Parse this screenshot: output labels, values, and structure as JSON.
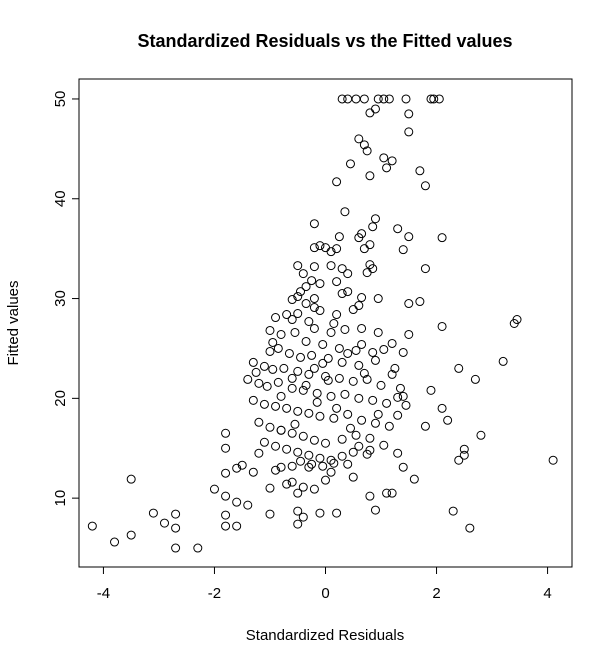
{
  "chart_data": {
    "type": "scatter",
    "title": "Standardized Residuals vs the Fitted values",
    "xlabel": "Standardized Residuals",
    "ylabel": "Fitted values",
    "xlim": [
      -4.44,
      4.44
    ],
    "ylim": [
      3.1,
      52.0
    ],
    "xticks": [
      -4,
      -2,
      0,
      2,
      4
    ],
    "yticks": [
      10,
      20,
      30,
      40,
      50
    ],
    "grid": false,
    "legend": "none",
    "marker": "open-circle",
    "points": [
      [
        -4.2,
        7.2
      ],
      [
        -3.8,
        5.6
      ],
      [
        -3.5,
        6.3
      ],
      [
        -3.5,
        11.9
      ],
      [
        -3.1,
        8.5
      ],
      [
        -2.9,
        7.5
      ],
      [
        -2.7,
        8.4
      ],
      [
        -2.7,
        7.0
      ],
      [
        -2.7,
        5.0
      ],
      [
        -2.3,
        5.0
      ],
      [
        -2.0,
        10.9
      ],
      [
        -1.8,
        12.5
      ],
      [
        -1.8,
        10.2
      ],
      [
        -1.8,
        8.3
      ],
      [
        -1.8,
        7.2
      ],
      [
        -1.8,
        15.0
      ],
      [
        -1.8,
        16.5
      ],
      [
        -1.6,
        13.0
      ],
      [
        -1.6,
        9.6
      ],
      [
        -1.6,
        7.2
      ],
      [
        -1.5,
        13.3
      ],
      [
        -1.4,
        9.3
      ],
      [
        -1.3,
        12.6
      ],
      [
        -1.2,
        14.5
      ],
      [
        -1.1,
        15.6
      ],
      [
        -1.0,
        8.4
      ],
      [
        -1.0,
        11.0
      ],
      [
        -0.9,
        12.8
      ],
      [
        -0.8,
        13.1
      ],
      [
        -0.8,
        16.8
      ],
      [
        -0.7,
        11.4
      ],
      [
        -0.6,
        11.6
      ],
      [
        -0.6,
        13.2
      ],
      [
        -0.5,
        7.4
      ],
      [
        -0.5,
        8.7
      ],
      [
        -0.5,
        10.5
      ],
      [
        -0.4,
        8.1
      ],
      [
        -0.4,
        11.1
      ],
      [
        -0.3,
        13.1
      ],
      [
        -0.2,
        10.9
      ],
      [
        -0.1,
        8.5
      ],
      [
        0.0,
        11.8
      ],
      [
        0.1,
        12.6
      ],
      [
        0.2,
        8.5
      ],
      [
        0.4,
        13.4
      ],
      [
        0.5,
        12.1
      ],
      [
        0.6,
        15.2
      ],
      [
        0.8,
        10.2
      ],
      [
        0.8,
        14.8
      ],
      [
        0.9,
        8.8
      ],
      [
        1.1,
        10.5
      ],
      [
        1.2,
        10.5
      ],
      [
        1.4,
        13.1
      ],
      [
        1.6,
        11.9
      ],
      [
        1.3,
        14.5
      ],
      [
        2.3,
        8.7
      ],
      [
        2.4,
        13.8
      ],
      [
        2.5,
        14.3
      ],
      [
        2.5,
        14.9
      ],
      [
        2.6,
        7.0
      ],
      [
        2.8,
        16.3
      ],
      [
        4.1,
        13.8
      ],
      [
        3.2,
        23.7
      ],
      [
        3.4,
        27.5
      ],
      [
        3.45,
        27.9
      ],
      [
        2.7,
        21.9
      ],
      [
        2.4,
        23.0
      ],
      [
        2.1,
        27.2
      ],
      [
        2.1,
        19.0
      ],
      [
        2.2,
        17.8
      ],
      [
        1.9,
        20.8
      ],
      [
        1.8,
        17.2
      ],
      [
        1.7,
        29.7
      ],
      [
        1.8,
        33.0
      ],
      [
        1.5,
        29.5
      ],
      [
        1.5,
        26.4
      ],
      [
        1.4,
        24.6
      ],
      [
        1.4,
        20.2
      ],
      [
        1.3,
        18.3
      ],
      [
        1.2,
        22.4
      ],
      [
        2.1,
        36.1
      ],
      [
        1.5,
        36.2
      ],
      [
        1.4,
        34.9
      ],
      [
        1.3,
        37.0
      ],
      [
        1.7,
        42.8
      ],
      [
        1.8,
        41.3
      ],
      [
        1.2,
        43.8
      ],
      [
        1.05,
        44.1
      ],
      [
        1.1,
        43.1
      ],
      [
        0.9,
        49.0
      ],
      [
        0.95,
        50.0
      ],
      [
        1.05,
        50.0
      ],
      [
        1.15,
        50.0
      ],
      [
        1.45,
        50.0
      ],
      [
        1.5,
        48.5
      ],
      [
        1.5,
        46.7
      ],
      [
        0.8,
        48.6
      ],
      [
        0.7,
        50.0
      ],
      [
        0.55,
        50.0
      ],
      [
        0.3,
        50.0
      ],
      [
        0.4,
        50.0
      ],
      [
        1.9,
        50.0
      ],
      [
        1.95,
        50.0
      ],
      [
        2.05,
        50.0
      ],
      [
        0.6,
        46.0
      ],
      [
        0.7,
        45.4
      ],
      [
        0.75,
        44.8
      ],
      [
        0.45,
        43.5
      ],
      [
        0.8,
        42.3
      ],
      [
        0.2,
        41.7
      ],
      [
        0.9,
        38.0
      ],
      [
        0.85,
        37.2
      ],
      [
        0.35,
        38.7
      ],
      [
        0.6,
        36.1
      ],
      [
        0.65,
        36.5
      ],
      [
        0.25,
        36.2
      ],
      [
        0.8,
        35.4
      ],
      [
        0.7,
        35.0
      ],
      [
        0.2,
        35.0
      ],
      [
        0.1,
        34.7
      ],
      [
        0.0,
        35.1
      ],
      [
        -0.1,
        35.3
      ],
      [
        -0.2,
        35.1
      ],
      [
        -0.2,
        37.5
      ],
      [
        0.8,
        33.4
      ],
      [
        0.85,
        33.0
      ],
      [
        0.75,
        32.6
      ],
      [
        0.4,
        32.5
      ],
      [
        0.3,
        33.0
      ],
      [
        0.1,
        33.3
      ],
      [
        -0.5,
        33.3
      ],
      [
        -0.4,
        32.5
      ],
      [
        -0.2,
        33.2
      ],
      [
        -0.1,
        31.5
      ],
      [
        0.2,
        31.7
      ],
      [
        0.3,
        30.5
      ],
      [
        0.4,
        30.7
      ],
      [
        0.65,
        30.1
      ],
      [
        0.95,
        30.0
      ],
      [
        -0.2,
        30.0
      ],
      [
        -0.6,
        29.9
      ],
      [
        -0.5,
        30.2
      ],
      [
        -0.45,
        30.7
      ],
      [
        -0.35,
        31.2
      ],
      [
        -0.25,
        31.8
      ],
      [
        0.6,
        29.3
      ],
      [
        0.2,
        28.4
      ],
      [
        -0.1,
        28.8
      ],
      [
        -0.2,
        29.1
      ],
      [
        -0.35,
        29.5
      ],
      [
        -0.5,
        28.5
      ],
      [
        -0.7,
        28.4
      ],
      [
        -0.9,
        28.1
      ],
      [
        -0.6,
        27.9
      ],
      [
        -0.3,
        27.7
      ],
      [
        -0.2,
        27.0
      ],
      [
        0.1,
        26.6
      ],
      [
        0.35,
        26.9
      ],
      [
        0.65,
        27.0
      ],
      [
        0.95,
        26.6
      ],
      [
        -1.0,
        26.8
      ],
      [
        -0.8,
        26.4
      ],
      [
        -0.55,
        26.6
      ],
      [
        -0.35,
        25.7
      ],
      [
        -0.05,
        25.4
      ],
      [
        0.25,
        25.0
      ],
      [
        0.55,
        24.8
      ],
      [
        0.85,
        24.6
      ],
      [
        1.05,
        24.9
      ],
      [
        -1.0,
        24.7
      ],
      [
        -0.85,
        25.0
      ],
      [
        -0.65,
        24.5
      ],
      [
        -0.45,
        24.1
      ],
      [
        -0.25,
        24.3
      ],
      [
        0.05,
        24.0
      ],
      [
        0.3,
        23.6
      ],
      [
        0.6,
        23.3
      ],
      [
        0.9,
        23.8
      ],
      [
        1.25,
        23.0
      ],
      [
        -1.3,
        23.6
      ],
      [
        -1.1,
        23.2
      ],
      [
        -0.95,
        22.9
      ],
      [
        -0.75,
        23.0
      ],
      [
        -0.5,
        22.7
      ],
      [
        -0.3,
        22.4
      ],
      [
        0.0,
        22.2
      ],
      [
        0.25,
        22.0
      ],
      [
        0.5,
        21.7
      ],
      [
        0.75,
        21.9
      ],
      [
        1.0,
        21.3
      ],
      [
        -1.4,
        21.9
      ],
      [
        -1.2,
        21.5
      ],
      [
        -1.05,
        21.2
      ],
      [
        -0.85,
        21.6
      ],
      [
        -0.6,
        21.0
      ],
      [
        -0.4,
        20.8
      ],
      [
        -0.15,
        20.5
      ],
      [
        0.1,
        20.2
      ],
      [
        0.35,
        20.4
      ],
      [
        0.6,
        20.0
      ],
      [
        0.85,
        19.8
      ],
      [
        1.1,
        19.5
      ],
      [
        1.3,
        20.1
      ],
      [
        1.45,
        19.3
      ],
      [
        -1.3,
        19.8
      ],
      [
        -1.1,
        19.4
      ],
      [
        -0.9,
        19.2
      ],
      [
        -0.7,
        19.0
      ],
      [
        -0.5,
        18.7
      ],
      [
        -0.3,
        18.5
      ],
      [
        -0.1,
        18.2
      ],
      [
        0.15,
        18.0
      ],
      [
        0.4,
        18.4
      ],
      [
        0.65,
        17.8
      ],
      [
        0.9,
        17.5
      ],
      [
        1.15,
        17.2
      ],
      [
        -1.2,
        17.6
      ],
      [
        -1.0,
        17.1
      ],
      [
        -0.8,
        16.8
      ],
      [
        -0.6,
        16.5
      ],
      [
        -0.4,
        16.2
      ],
      [
        -0.2,
        15.8
      ],
      [
        0.0,
        15.5
      ],
      [
        0.3,
        15.9
      ],
      [
        0.55,
        16.3
      ],
      [
        0.8,
        16.0
      ],
      [
        1.05,
        15.3
      ],
      [
        -0.9,
        15.2
      ],
      [
        -0.7,
        14.9
      ],
      [
        -0.5,
        14.6
      ],
      [
        -0.3,
        14.3
      ],
      [
        -0.1,
        14.0
      ],
      [
        0.1,
        13.8
      ],
      [
        0.3,
        14.2
      ],
      [
        0.5,
        14.6
      ],
      [
        0.75,
        14.4
      ],
      [
        -0.45,
        13.7
      ],
      [
        -0.25,
        13.4
      ],
      [
        -0.05,
        13.2
      ],
      [
        0.15,
        13.5
      ],
      [
        -0.6,
        22.0
      ],
      [
        -0.2,
        23.0
      ],
      [
        0.4,
        24.5
      ],
      [
        0.7,
        22.5
      ],
      [
        -0.8,
        20.2
      ],
      [
        0.2,
        19.0
      ],
      [
        -0.35,
        21.3
      ],
      [
        0.05,
        21.8
      ],
      [
        -0.15,
        19.6
      ],
      [
        0.45,
        17.0
      ],
      [
        -0.55,
        17.4
      ],
      [
        1.2,
        25.5
      ],
      [
        -0.95,
        25.6
      ],
      [
        0.15,
        27.5
      ],
      [
        0.5,
        28.9
      ],
      [
        -0.05,
        23.5
      ],
      [
        0.65,
        25.4
      ],
      [
        -1.25,
        22.6
      ],
      [
        1.35,
        21.0
      ],
      [
        0.95,
        18.4
      ]
    ]
  }
}
